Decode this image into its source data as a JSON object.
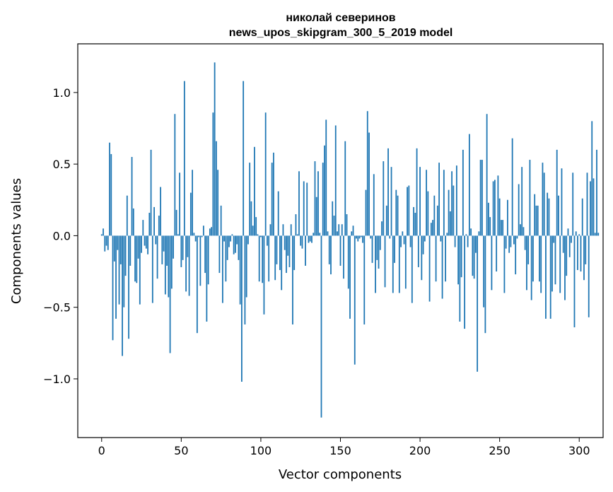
{
  "chart_data": {
    "type": "bar",
    "title": "николай северинов",
    "subtitle": "news_upos_skipgram_300_5_2019 model",
    "xlabel": "Vector components",
    "ylabel": "Components values",
    "xlim": [
      -15,
      315
    ],
    "ylim": [
      -1.41,
      1.34
    ],
    "xticks": [
      0,
      50,
      100,
      150,
      200,
      250,
      300
    ],
    "yticks": [
      -1.0,
      -0.5,
      0.0,
      0.5,
      1.0
    ],
    "ytick_labels": [
      "−1.0",
      "−0.5",
      "0.0",
      "0.5",
      "1.0"
    ],
    "bar_color": "#1f77b4",
    "grid": false,
    "values": [
      0.01,
      0.05,
      -0.11,
      -0.07,
      -0.1,
      0.65,
      0.57,
      -0.73,
      -0.18,
      -0.58,
      -0.1,
      -0.48,
      -0.2,
      -0.84,
      -0.5,
      -0.28,
      0.28,
      -0.72,
      -0.21,
      0.55,
      0.19,
      -0.32,
      -0.33,
      -0.16,
      -0.48,
      -0.12,
      0.11,
      -0.07,
      -0.09,
      -0.13,
      0.16,
      0.6,
      -0.47,
      0.2,
      -0.06,
      -0.3,
      0.14,
      0.34,
      -0.2,
      -0.11,
      -0.41,
      -0.21,
      -0.43,
      -0.82,
      -0.37,
      -0.16,
      0.85,
      0.18,
      0.01,
      0.44,
      -0.22,
      -0.17,
      1.08,
      -0.39,
      -0.15,
      -0.42,
      0.3,
      0.46,
      0.02,
      -0.04,
      -0.68,
      -0.01,
      -0.35,
      -0.01,
      0.07,
      -0.26,
      -0.6,
      -0.34,
      0.05,
      0.06,
      0.86,
      1.21,
      0.66,
      0.46,
      -0.26,
      0.21,
      -0.47,
      -0.04,
      -0.32,
      -0.17,
      -0.08,
      -0.04,
      0.01,
      -0.13,
      -0.12,
      -0.06,
      -0.17,
      -0.48,
      -1.02,
      1.08,
      -0.62,
      -0.43,
      -0.06,
      0.51,
      0.24,
      0.07,
      0.62,
      0.13,
      0.01,
      -0.32,
      -0.01,
      -0.33,
      -0.55,
      0.86,
      -0.07,
      -0.32,
      0.08,
      0.51,
      0.58,
      -0.31,
      -0.2,
      0.31,
      -0.24,
      -0.38,
      0.08,
      -0.1,
      -0.26,
      -0.14,
      -0.22,
      0.08,
      -0.62,
      -0.24,
      0.15,
      0.01,
      0.45,
      -0.07,
      -0.09,
      0.38,
      -0.21,
      0.37,
      -0.05,
      -0.04,
      -0.05,
      0.02,
      0.52,
      0.27,
      0.45,
      0.02,
      -1.27,
      0.51,
      0.63,
      0.81,
      0.03,
      -0.2,
      -0.27,
      0.24,
      0.14,
      0.77,
      0.03,
      0.08,
      -0.21,
      0.08,
      -0.3,
      0.66,
      0.15,
      -0.37,
      -0.58,
      0.03,
      0.07,
      -0.9,
      -0.02,
      -0.04,
      -0.02,
      -0.01,
      -0.05,
      -0.62,
      0.32,
      0.87,
      0.72,
      -0.02,
      -0.19,
      0.43,
      -0.4,
      -0.17,
      -0.23,
      -0.1,
      0.1,
      0.52,
      -0.36,
      0.21,
      0.61,
      -0.02,
      0.48,
      -0.4,
      -0.19,
      0.32,
      0.28,
      -0.4,
      -0.08,
      0.03,
      -0.06,
      -0.37,
      0.34,
      0.35,
      -0.08,
      -0.47,
      0.2,
      0.16,
      0.61,
      -0.22,
      0.48,
      -0.31,
      -0.13,
      -0.04,
      0.46,
      0.31,
      -0.46,
      0.09,
      0.11,
      0.28,
      -0.32,
      0.21,
      0.51,
      -0.04,
      -0.44,
      0.46,
      -0.32,
      0.02,
      0.32,
      0.17,
      0.45,
      0.35,
      -0.08,
      0.49,
      -0.34,
      -0.6,
      -0.29,
      0.6,
      -0.65,
      0.01,
      -0.08,
      0.71,
      0.05,
      -0.28,
      -0.3,
      -0.12,
      -0.95,
      0.03,
      0.53,
      0.53,
      -0.5,
      -0.68,
      0.85,
      0.23,
      0.13,
      -0.38,
      0.38,
      0.39,
      -0.25,
      0.42,
      0.26,
      0.11,
      0.11,
      -0.4,
      -0.09,
      0.25,
      -0.12,
      -0.08,
      0.68,
      -0.06,
      -0.27,
      -0.02,
      0.36,
      0.08,
      0.48,
      0.06,
      -0.1,
      -0.38,
      -0.2,
      0.53,
      -0.45,
      -0.32,
      0.29,
      0.21,
      0.21,
      -0.32,
      -0.4,
      0.51,
      0.44,
      -0.58,
      0.3,
      0.26,
      -0.58,
      -0.39,
      -0.05,
      -0.34,
      0.6,
      0.28,
      -0.4,
      0.47,
      -0.12,
      -0.45,
      -0.28,
      0.05,
      -0.15,
      -0.05,
      0.44,
      -0.64,
      0.03,
      -0.24,
      0.01,
      -0.25,
      0.26,
      -0.31,
      -0.2,
      0.44,
      -0.57,
      0.38,
      0.8,
      0.4,
      0.02,
      0.6,
      0.02
    ]
  }
}
